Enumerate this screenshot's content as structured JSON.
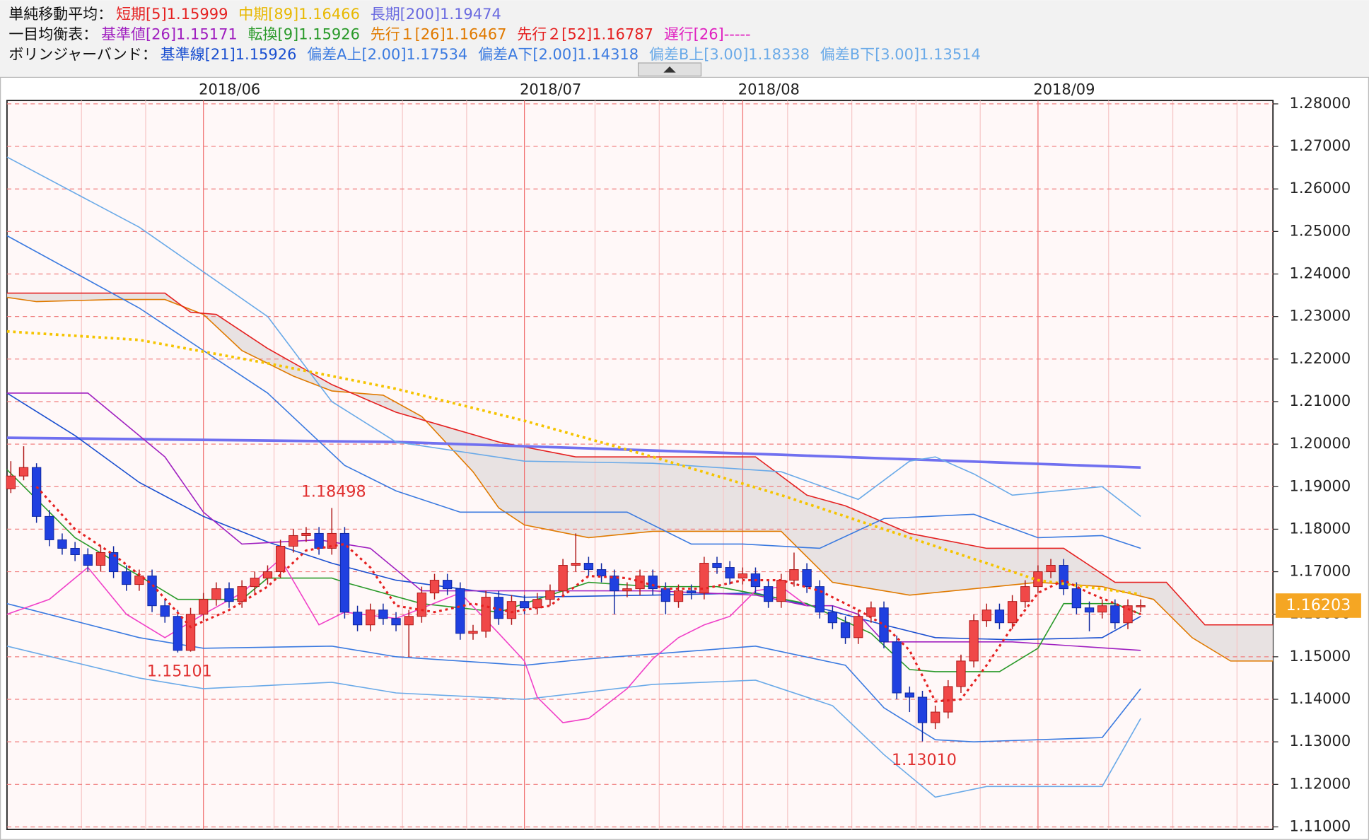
{
  "header": {
    "rows": [
      {
        "label": "単純移動平均：",
        "items": [
          {
            "text": "短期[5]1.15999",
            "color": "#e52020"
          },
          {
            "text": "中期[89]1.16466",
            "color": "#e8b800"
          },
          {
            "text": "長期[200]1.19474",
            "color": "#6a6ae0"
          }
        ]
      },
      {
        "label": "一目均衡表：",
        "items": [
          {
            "text": "基準値[26]1.15171",
            "color": "#a020c0"
          },
          {
            "text": "転換[9]1.15926",
            "color": "#2a9a2a"
          },
          {
            "text": "先行１[26]1.16467",
            "color": "#e07a00"
          },
          {
            "text": "先行２[52]1.16787",
            "color": "#e52020"
          },
          {
            "text": "遅行[26]-----",
            "color": "#e020c0"
          }
        ]
      },
      {
        "label": "ボリンジャーバンド：",
        "items": [
          {
            "text": "基準線[21]1.15926",
            "color": "#1a4fd0"
          },
          {
            "text": "偏差A上[2.00]1.17534",
            "color": "#3a7ae0"
          },
          {
            "text": "偏差A下[2.00]1.14318",
            "color": "#3a7ae0"
          },
          {
            "text": "偏差B上[3.00]1.18338",
            "color": "#6aaae8"
          },
          {
            "text": "偏差B下[3.00]1.13514",
            "color": "#6aaae8"
          }
        ]
      }
    ]
  },
  "chart_data": {
    "type": "candlestick",
    "up_color": "#f04848",
    "down_color": "#2040e0",
    "xlim": [
      -0.3,
      98.3
    ],
    "xticks": [
      {
        "value": 15,
        "label": "2018/06"
      },
      {
        "value": 40,
        "label": "2018/07"
      },
      {
        "value": 57,
        "label": "2018/08"
      },
      {
        "value": 80,
        "label": "2018/09"
      }
    ],
    "minor_xticks": [
      5.5,
      10.5,
      20.5,
      25.5,
      30.5,
      35.5,
      45.5,
      50.5,
      55.5,
      60.5,
      65.5,
      70.5,
      75.5,
      85.5,
      90.5,
      95.5
    ],
    "ylim": [
      1.1094,
      1.2808
    ],
    "yticks": [
      {
        "value": 1.11,
        "label": "1.11000"
      },
      {
        "value": 1.12,
        "label": "1.12000"
      },
      {
        "value": 1.13,
        "label": "1.13000"
      },
      {
        "value": 1.14,
        "label": "1.14000"
      },
      {
        "value": 1.15,
        "label": "1.15000"
      },
      {
        "value": 1.16,
        "label": "1.16000"
      },
      {
        "value": 1.17,
        "label": "1.17000"
      },
      {
        "value": 1.18,
        "label": "1.18000"
      },
      {
        "value": 1.19,
        "label": "1.19000"
      },
      {
        "value": 1.2,
        "label": "1.20000"
      },
      {
        "value": 1.21,
        "label": "1.21000"
      },
      {
        "value": 1.22,
        "label": "1.22000"
      },
      {
        "value": 1.23,
        "label": "1.23000"
      },
      {
        "value": 1.24,
        "label": "1.24000"
      },
      {
        "value": 1.25,
        "label": "1.25000"
      },
      {
        "value": 1.26,
        "label": "1.26000"
      },
      {
        "value": 1.27,
        "label": "1.27000"
      },
      {
        "value": 1.28,
        "label": "1.28000"
      }
    ],
    "grid": true,
    "open": [
      1.1895,
      1.1925,
      1.1945,
      1.183,
      1.1775,
      1.1755,
      1.174,
      1.1715,
      1.1745,
      1.17,
      1.167,
      1.169,
      1.162,
      1.1595,
      1.1515,
      1.16,
      1.1635,
      1.166,
      1.163,
      1.1665,
      1.1685,
      1.17,
      1.176,
      1.1785,
      1.179,
      1.1755,
      1.179,
      1.1605,
      1.1575,
      1.161,
      1.159,
      1.1575,
      1.1595,
      1.165,
      1.168,
      1.166,
      1.1555,
      1.156,
      1.164,
      1.159,
      1.163,
      1.1615,
      1.1635,
      1.1655,
      1.1715,
      1.172,
      1.1705,
      1.169,
      1.1655,
      1.166,
      1.169,
      1.166,
      1.163,
      1.1655,
      1.165,
      1.172,
      1.171,
      1.1685,
      1.1695,
      1.1665,
      1.163,
      1.168,
      1.1705,
      1.1665,
      1.1605,
      1.158,
      1.1545,
      1.1595,
      1.1615,
      1.1535,
      1.1415,
      1.1405,
      1.1345,
      1.137,
      1.143,
      1.149,
      1.1585,
      1.161,
      1.158,
      1.163,
      1.1665,
      1.17,
      1.1715,
      1.166,
      1.1615,
      1.1605,
      1.162,
      1.158,
      1.162
    ],
    "high": [
      1.196,
      1.1995,
      1.1955,
      1.1845,
      1.179,
      1.177,
      1.1755,
      1.176,
      1.176,
      1.1715,
      1.1705,
      1.1705,
      1.1635,
      1.161,
      1.1615,
      1.165,
      1.1675,
      1.1675,
      1.168,
      1.17,
      1.1715,
      1.1775,
      1.18,
      1.1805,
      1.1805,
      1.18498,
      1.1805,
      1.162,
      1.1625,
      1.1625,
      1.1605,
      1.161,
      1.1665,
      1.1695,
      1.1695,
      1.1675,
      1.1575,
      1.1655,
      1.1655,
      1.1645,
      1.1645,
      1.165,
      1.167,
      1.173,
      1.179,
      1.1735,
      1.172,
      1.1705,
      1.1675,
      1.1705,
      1.1705,
      1.1675,
      1.167,
      1.167,
      1.1735,
      1.1735,
      1.1725,
      1.171,
      1.171,
      1.168,
      1.1695,
      1.1745,
      1.172,
      1.168,
      1.162,
      1.1595,
      1.161,
      1.163,
      1.163,
      1.155,
      1.143,
      1.142,
      1.1385,
      1.1445,
      1.1505,
      1.16,
      1.1625,
      1.1625,
      1.1645,
      1.168,
      1.1715,
      1.173,
      1.173,
      1.1675,
      1.163,
      1.1635,
      1.1635,
      1.1635,
      1.1635
    ],
    "low": [
      1.1885,
      1.1915,
      1.1815,
      1.176,
      1.174,
      1.1725,
      1.17,
      1.17,
      1.1685,
      1.1655,
      1.1655,
      1.1605,
      1.158,
      1.15101,
      1.1512,
      1.1585,
      1.162,
      1.1615,
      1.1615,
      1.165,
      1.167,
      1.1685,
      1.1745,
      1.177,
      1.174,
      1.174,
      1.159,
      1.156,
      1.156,
      1.1575,
      1.156,
      1.15,
      1.158,
      1.1635,
      1.1645,
      1.154,
      1.154,
      1.1545,
      1.1575,
      1.1575,
      1.16,
      1.16,
      1.162,
      1.164,
      1.17,
      1.169,
      1.1675,
      1.16,
      1.164,
      1.1645,
      1.1645,
      1.16,
      1.1615,
      1.1635,
      1.1635,
      1.1695,
      1.167,
      1.167,
      1.165,
      1.1615,
      1.1615,
      1.1665,
      1.165,
      1.159,
      1.1565,
      1.153,
      1.153,
      1.158,
      1.152,
      1.14,
      1.137,
      1.1301,
      1.133,
      1.1355,
      1.1415,
      1.1475,
      1.157,
      1.1565,
      1.1565,
      1.1615,
      1.165,
      1.1685,
      1.1645,
      1.16,
      1.156,
      1.159,
      1.1565,
      1.1565,
      1.1605
    ],
    "close": [
      1.1925,
      1.1945,
      1.183,
      1.1775,
      1.1755,
      1.174,
      1.1715,
      1.1745,
      1.17,
      1.167,
      1.169,
      1.162,
      1.1595,
      1.1515,
      1.16,
      1.1635,
      1.166,
      1.163,
      1.1665,
      1.1685,
      1.17,
      1.176,
      1.1785,
      1.179,
      1.1755,
      1.179,
      1.1605,
      1.1575,
      1.161,
      1.159,
      1.1575,
      1.1595,
      1.165,
      1.168,
      1.166,
      1.1555,
      1.156,
      1.164,
      1.159,
      1.163,
      1.1615,
      1.1635,
      1.1655,
      1.1715,
      1.172,
      1.1705,
      1.169,
      1.1655,
      1.166,
      1.169,
      1.166,
      1.163,
      1.1655,
      1.165,
      1.172,
      1.171,
      1.1685,
      1.1695,
      1.1665,
      1.163,
      1.168,
      1.1705,
      1.1665,
      1.1605,
      1.158,
      1.1545,
      1.1595,
      1.1615,
      1.1535,
      1.1415,
      1.1405,
      1.1345,
      1.137,
      1.143,
      1.149,
      1.1585,
      1.161,
      1.158,
      1.163,
      1.1665,
      1.17,
      1.1715,
      1.166,
      1.1615,
      1.1605,
      1.162,
      1.158,
      1.162,
      1.16203
    ],
    "price_box_color": "#f5a623",
    "annotations": [
      {
        "value": 1.18498,
        "label": "1.18498",
        "color": "#e03030"
      },
      {
        "value": 1.15101,
        "label": "1.15101",
        "color": "#e03030"
      },
      {
        "value": 1.1301,
        "label": "1.13010",
        "color": "#e03030"
      }
    ],
    "cloud": {
      "fill": "#e4dede",
      "upper": {
        "color": "#e07a00",
        "x": [
          -0.3,
          2,
          8,
          12,
          15,
          18,
          22,
          25,
          29,
          32,
          36,
          38,
          40,
          45,
          50,
          55,
          60,
          64,
          70,
          80,
          85,
          89,
          92,
          95,
          98.3
        ],
        "values": [
          1.2345,
          1.2335,
          1.234,
          1.234,
          1.2305,
          1.222,
          1.216,
          1.2125,
          1.2115,
          1.2065,
          1.1935,
          1.185,
          1.181,
          1.178,
          1.1795,
          1.1795,
          1.1795,
          1.1675,
          1.1645,
          1.1675,
          1.1665,
          1.1635,
          1.1545,
          1.149,
          1.149
        ]
      },
      "lower": {
        "color": "#e52020",
        "x": [
          -0.3,
          8,
          12,
          14,
          16,
          20,
          25,
          30,
          38,
          44,
          58,
          62,
          65,
          70,
          76,
          82,
          86,
          90,
          93,
          98.3
        ],
        "values": [
          1.2355,
          1.2355,
          1.2355,
          1.231,
          1.2305,
          1.2225,
          1.214,
          1.2075,
          1.2005,
          1.197,
          1.197,
          1.188,
          1.1855,
          1.179,
          1.1755,
          1.1755,
          1.1675,
          1.1675,
          1.1575,
          1.1575
        ]
      }
    },
    "series": [
      {
        "color": "#7070f0",
        "width": 3,
        "x": [
          -0.3,
          30,
          60,
          88
        ],
        "values": [
          1.2015,
          1.2005,
          1.1975,
          1.1945
        ]
      },
      {
        "color": "#6aaae8",
        "width": 1.3,
        "x": [
          -0.3,
          10,
          20,
          25,
          30,
          40,
          50,
          60,
          66,
          70,
          72,
          75,
          78,
          85,
          88
        ],
        "values": [
          1.2675,
          1.251,
          1.23,
          1.21,
          1.2005,
          1.196,
          1.1955,
          1.1935,
          1.187,
          1.196,
          1.197,
          1.193,
          1.188,
          1.19,
          1.183
        ]
      },
      {
        "color": "#3a7ae0",
        "width": 1.3,
        "x": [
          -0.3,
          10,
          20,
          26,
          30,
          35,
          48,
          53,
          57,
          63,
          68,
          75,
          80,
          85,
          88
        ],
        "values": [
          1.249,
          1.232,
          1.212,
          1.195,
          1.189,
          1.184,
          1.184,
          1.1765,
          1.1765,
          1.1755,
          1.1825,
          1.1835,
          1.178,
          1.1785,
          1.1755
        ]
      },
      {
        "color": "#1a4fd0",
        "width": 1.3,
        "x": [
          -0.3,
          5,
          10,
          15,
          20,
          25,
          30,
          40,
          50,
          58,
          63,
          68,
          72,
          78,
          85,
          88
        ],
        "values": [
          1.212,
          1.202,
          1.191,
          1.183,
          1.177,
          1.172,
          1.168,
          1.164,
          1.1645,
          1.165,
          1.1615,
          1.1575,
          1.1545,
          1.154,
          1.1545,
          1.1595
        ]
      },
      {
        "color": "#3a7ae0",
        "width": 1.3,
        "x": [
          -0.3,
          10,
          15,
          25,
          30,
          40,
          45,
          58,
          65,
          68,
          72,
          75,
          85,
          88
        ],
        "values": [
          1.1625,
          1.1545,
          1.152,
          1.1525,
          1.15,
          1.148,
          1.1495,
          1.1525,
          1.148,
          1.138,
          1.1305,
          1.13,
          1.131,
          1.1425
        ]
      },
      {
        "color": "#6aaae8",
        "width": 1.3,
        "x": [
          -0.3,
          10,
          15,
          25,
          30,
          40,
          50,
          58,
          64,
          68,
          72,
          76,
          85,
          88
        ],
        "values": [
          1.1525,
          1.145,
          1.1425,
          1.144,
          1.1415,
          1.14,
          1.1435,
          1.1445,
          1.1385,
          1.127,
          1.117,
          1.1195,
          1.1195,
          1.1355
        ]
      },
      {
        "color": "#a020c0",
        "width": 1.3,
        "x": [
          -0.3,
          6,
          12,
          15,
          18,
          24,
          28,
          32,
          40,
          50,
          58,
          62,
          64,
          66,
          68,
          78,
          88
        ],
        "values": [
          1.212,
          1.212,
          1.197,
          1.184,
          1.1765,
          1.1775,
          1.1755,
          1.1655,
          1.1655,
          1.1655,
          1.1645,
          1.162,
          1.162,
          1.16,
          1.1535,
          1.1535,
          1.1515
        ]
      },
      {
        "color": "#2a9a2a",
        "width": 1.3,
        "x": [
          -0.3,
          5,
          10,
          13,
          18,
          20,
          25,
          26,
          32,
          38,
          45,
          50,
          55,
          62,
          67,
          70,
          72,
          77,
          80,
          82,
          86,
          88
        ],
        "values": [
          1.194,
          1.178,
          1.169,
          1.1635,
          1.1635,
          1.1685,
          1.1685,
          1.1675,
          1.1625,
          1.1605,
          1.1675,
          1.1665,
          1.1665,
          1.1625,
          1.1555,
          1.147,
          1.1465,
          1.1465,
          1.152,
          1.1625,
          1.1625,
          1.16
        ]
      },
      {
        "color": "#f040c8",
        "width": 1.3,
        "x": [
          -0.3,
          3,
          6,
          9,
          12,
          15,
          18,
          21,
          24,
          26,
          30,
          35,
          38,
          40,
          41,
          43,
          45,
          48,
          50,
          52,
          54,
          56,
          58,
          60,
          62
        ],
        "values": [
          1.16,
          1.1635,
          1.171,
          1.16,
          1.1545,
          1.16,
          1.165,
          1.173,
          1.1575,
          1.1605,
          1.159,
          1.165,
          1.1555,
          1.149,
          1.1405,
          1.1345,
          1.1355,
          1.1425,
          1.1495,
          1.1545,
          1.1575,
          1.1595,
          1.1655,
          1.1665,
          1.162
        ]
      },
      {
        "color": "#f5c400",
        "width": 3,
        "dash": "3 4",
        "x": [
          -0.3,
          10,
          20,
          30,
          40,
          50,
          60,
          70,
          80,
          88
        ],
        "values": [
          1.2265,
          1.2245,
          1.219,
          1.213,
          1.2055,
          1.197,
          1.188,
          1.178,
          1.168,
          1.1647
        ]
      },
      {
        "color": "#e52020",
        "width": 2.5,
        "dash": "3 4",
        "x": [
          2,
          5,
          8,
          11,
          14,
          17,
          20,
          23,
          26,
          28,
          30,
          33,
          36,
          39,
          42,
          45,
          48,
          51,
          54,
          57,
          60,
          63,
          66,
          68,
          70,
          72,
          74,
          76,
          78,
          80,
          82,
          84,
          86,
          88
        ],
        "values": [
          1.19,
          1.18,
          1.174,
          1.167,
          1.157,
          1.161,
          1.1665,
          1.175,
          1.1765,
          1.171,
          1.162,
          1.1605,
          1.1625,
          1.1605,
          1.162,
          1.169,
          1.1685,
          1.166,
          1.166,
          1.168,
          1.168,
          1.1655,
          1.161,
          1.1575,
          1.1515,
          1.1395,
          1.14,
          1.148,
          1.157,
          1.165,
          1.168,
          1.165,
          1.1625,
          1.16
        ]
      }
    ]
  }
}
